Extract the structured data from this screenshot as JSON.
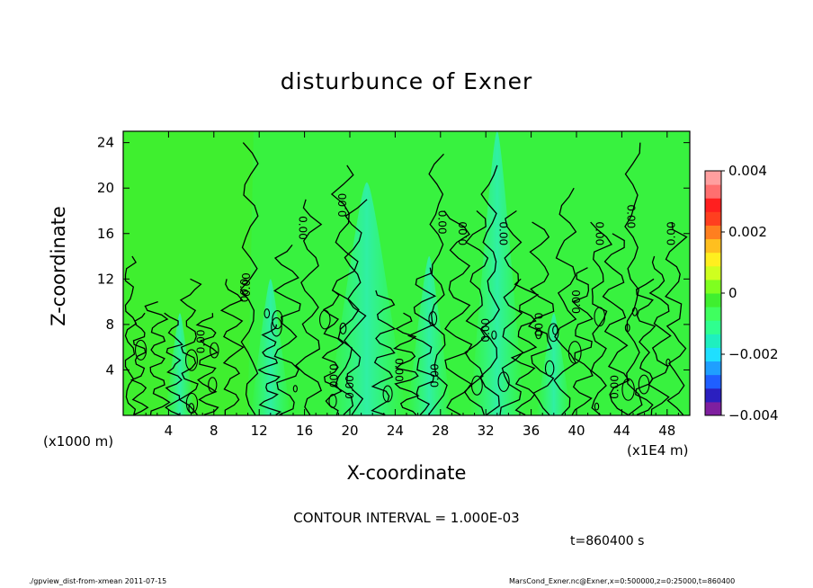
{
  "chart_data": {
    "type": "heatmap",
    "title": "disturbunce of Exner",
    "xlabel": "X-coordinate",
    "ylabel": "Z-coordinate",
    "x_unit_left": "(x1000 m)",
    "x_unit_right": "(x1E4 m)",
    "x_ticks": [
      4,
      8,
      12,
      16,
      20,
      24,
      28,
      32,
      36,
      40,
      44,
      48
    ],
    "y_ticks": [
      4,
      8,
      12,
      16,
      20,
      24
    ],
    "xlim": [
      0,
      50
    ],
    "ylim": [
      0,
      25
    ],
    "colorbar": {
      "tick_labels": [
        "0.004",
        "0.002",
        "0",
        "−0.002",
        "−0.004"
      ],
      "range": [
        -0.004,
        0.004
      ],
      "colors": [
        "#7f1f9f",
        "#2b1fbf",
        "#1f5fff",
        "#1f9fff",
        "#1fdfff",
        "#1fefbf",
        "#2fff8f",
        "#3fff5f",
        "#3fef2f",
        "#7fff1f",
        "#cfff1f",
        "#ffef1f",
        "#ffbf1f",
        "#ff7f1f",
        "#ff3f1f",
        "#ff1f1f",
        "#ff6f6f",
        "#ff9f9f"
      ]
    },
    "contour_interval": "CONTOUR INTERVAL = 1.000E-03",
    "contour_labels": [
      "0.00"
    ],
    "time": "t=860400 s"
  },
  "footer": {
    "left": "./gpview_dist-from-xmean  2011-07-15",
    "right": "MarsCond_Exner.nc@Exner,x=0:500000,z=0:25000,t=860400"
  }
}
